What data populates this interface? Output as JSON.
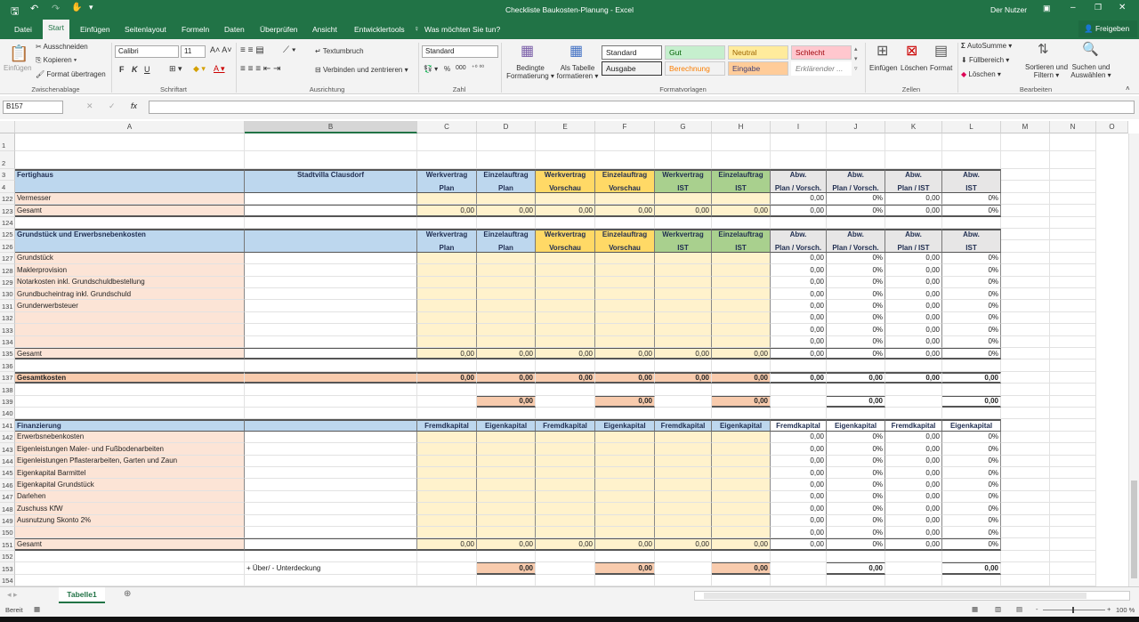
{
  "window": {
    "title": "Checkliste Baukosten-Planung - Excel",
    "user": "Der Nutzer",
    "share": "Freigeben",
    "brand_color": "#217346"
  },
  "qat": {
    "save": "save-icon",
    "undo": "undo-icon",
    "redo": "redo-icon",
    "touch": "touch-mode-icon"
  },
  "tabs": [
    "Datei",
    "Start",
    "Einfügen",
    "Seitenlayout",
    "Formeln",
    "Daten",
    "Überprüfen",
    "Ansicht",
    "Entwicklertools"
  ],
  "tell_me": "Was möchten Sie tun?",
  "ribbon": {
    "clipboard": {
      "paste": "Einfügen",
      "cut": "Ausschneiden",
      "copy": "Kopieren",
      "format_painter": "Format übertragen",
      "group": "Zwischenablage"
    },
    "font": {
      "name": "Calibri",
      "size": "11",
      "bold": "F",
      "italic": "K",
      "underline": "U",
      "group": "Schriftart"
    },
    "alignment": {
      "wrap": "Textumbruch",
      "merge": "Verbinden und zentrieren",
      "group": "Ausrichtung"
    },
    "number": {
      "format": "Standard",
      "percent": "%",
      "thousands": "000",
      "group": "Zahl"
    },
    "styles": {
      "conditional": [
        "Bedingte",
        "Formatierung"
      ],
      "as_table": [
        "Als Tabelle",
        "formatieren"
      ],
      "cells": [
        "Standard",
        "Gut",
        "Neutral",
        "Schlecht",
        "Ausgabe",
        "Berechnung",
        "Eingabe",
        "Erklärender ..."
      ],
      "group": "Formatvorlagen"
    },
    "cells": {
      "insert": "Einfügen",
      "delete": "Löschen",
      "format": "Format",
      "group": "Zellen"
    },
    "editing": {
      "autosum": "AutoSumme",
      "fill": "Füllbereich",
      "clear": "Löschen",
      "sort": [
        "Sortieren und",
        "Filtern"
      ],
      "find": [
        "Suchen und",
        "Auswählen"
      ],
      "group": "Bearbeiten"
    }
  },
  "formula_bar": {
    "name_box": "B157",
    "fx": "fx",
    "value": ""
  },
  "sheet": {
    "columns": [
      "A",
      "B",
      "C",
      "D",
      "E",
      "F",
      "G",
      "H",
      "I",
      "J",
      "K",
      "L",
      "M",
      "N",
      "O"
    ],
    "rows": [
      {
        "num": "1",
        "kind": "blank",
        "cells": []
      },
      {
        "num": "2",
        "kind": "blank",
        "cells": []
      },
      {
        "num": "3",
        "kind": "header-top",
        "cells": [
          "Fertighaus",
          "Stadtvilla Clausdorf",
          "Werkvertrag",
          "Einzelauftrag",
          "Werkvertrag",
          "Einzelauftrag",
          "Werkvertrag",
          "Einzelauftrag",
          "Abw.",
          "Abw.",
          "Abw.",
          "Abw."
        ]
      },
      {
        "num": "4",
        "kind": "header-bottom",
        "cells": [
          "",
          "",
          "Plan",
          "Plan",
          "Vorschau",
          "Vorschau",
          "IST",
          "IST",
          "Plan / Vorsch.",
          "Plan / Vorsch.",
          "Plan / IST",
          "IST"
        ]
      },
      {
        "num": "122",
        "kind": "item",
        "cells": [
          "Vermesser",
          "",
          "",
          "",
          "",
          "",
          "",
          "",
          "0,00",
          "0%",
          "0,00",
          "0%"
        ]
      },
      {
        "num": "123",
        "kind": "total",
        "cells": [
          "Gesamt",
          "",
          "0,00",
          "0,00",
          "0,00",
          "0,00",
          "0,00",
          "0,00",
          "0,00",
          "0%",
          "0,00",
          "0%"
        ]
      },
      {
        "num": "124",
        "kind": "blank",
        "cells": []
      },
      {
        "num": "125",
        "kind": "header-top",
        "cells": [
          "Grundstück und Erwerbsnebenkosten",
          "",
          "Werkvertrag",
          "Einzelauftrag",
          "Werkvertrag",
          "Einzelauftrag",
          "Werkvertrag",
          "Einzelauftrag",
          "Abw.",
          "Abw.",
          "Abw.",
          "Abw."
        ]
      },
      {
        "num": "126",
        "kind": "header-bottom",
        "cells": [
          "",
          "",
          "Plan",
          "Plan",
          "Vorschau",
          "Vorschau",
          "IST",
          "IST",
          "Plan / Vorsch.",
          "Plan / Vorsch.",
          "Plan / IST",
          "IST"
        ]
      },
      {
        "num": "127",
        "kind": "item",
        "cells": [
          "Grundstück",
          "",
          "",
          "",
          "",
          "",
          "",
          "",
          "0,00",
          "0%",
          "0,00",
          "0%"
        ]
      },
      {
        "num": "128",
        "kind": "item",
        "cells": [
          "Maklerprovision",
          "",
          "",
          "",
          "",
          "",
          "",
          "",
          "0,00",
          "0%",
          "0,00",
          "0%"
        ]
      },
      {
        "num": "129",
        "kind": "item",
        "cells": [
          "Notarkosten inkl. Grundschuldbestellung",
          "",
          "",
          "",
          "",
          "",
          "",
          "",
          "0,00",
          "0%",
          "0,00",
          "0%"
        ]
      },
      {
        "num": "130",
        "kind": "item",
        "cells": [
          "Grundbucheintrag inkl. Grundschuld",
          "",
          "",
          "",
          "",
          "",
          "",
          "",
          "0,00",
          "0%",
          "0,00",
          "0%"
        ]
      },
      {
        "num": "131",
        "kind": "item",
        "cells": [
          "Grunderwerbsteuer",
          "",
          "",
          "",
          "",
          "",
          "",
          "",
          "0,00",
          "0%",
          "0,00",
          "0%"
        ]
      },
      {
        "num": "132",
        "kind": "item",
        "cells": [
          "",
          "",
          "",
          "",
          "",
          "",
          "",
          "",
          "0,00",
          "0%",
          "0,00",
          "0%"
        ]
      },
      {
        "num": "133",
        "kind": "item",
        "cells": [
          "",
          "",
          "",
          "",
          "",
          "",
          "",
          "",
          "0,00",
          "0%",
          "0,00",
          "0%"
        ]
      },
      {
        "num": "134",
        "kind": "item",
        "cells": [
          "",
          "",
          "",
          "",
          "",
          "",
          "",
          "",
          "0,00",
          "0%",
          "0,00",
          "0%"
        ]
      },
      {
        "num": "135",
        "kind": "total",
        "cells": [
          "Gesamt",
          "",
          "0,00",
          "0,00",
          "0,00",
          "0,00",
          "0,00",
          "0,00",
          "0,00",
          "0%",
          "0,00",
          "0%"
        ]
      },
      {
        "num": "136",
        "kind": "blank",
        "cells": []
      },
      {
        "num": "137",
        "kind": "grand",
        "cells": [
          "Gesamtkosten",
          "",
          "0,00",
          "0,00",
          "0,00",
          "0,00",
          "0,00",
          "0,00",
          "0,00",
          "0,00",
          "0,00",
          "0,00"
        ]
      },
      {
        "num": "138",
        "kind": "blank",
        "cells": []
      },
      {
        "num": "139",
        "kind": "diff",
        "cells": [
          "",
          "",
          "",
          "0,00",
          "",
          "0,00",
          "",
          "0,00",
          "",
          "0,00",
          "",
          "0,00"
        ]
      },
      {
        "num": "140",
        "kind": "blank",
        "cells": []
      },
      {
        "num": "141",
        "kind": "fin-header",
        "cells": [
          "Finanzierung",
          "",
          "Fremdkapital",
          "Eigenkapital",
          "Fremdkapital",
          "Eigenkapital",
          "Fremdkapital",
          "Eigenkapital",
          "Fremdkapital",
          "Eigenkapital",
          "Fremdkapital",
          "Eigenkapital"
        ]
      },
      {
        "num": "142",
        "kind": "item",
        "cells": [
          "Erwerbsnebenkosten",
          "",
          "",
          "",
          "",
          "",
          "",
          "",
          "0,00",
          "0%",
          "0,00",
          "0%"
        ]
      },
      {
        "num": "143",
        "kind": "item",
        "cells": [
          "Eigenleistungen Maler- und Fußbodenarbeiten",
          "",
          "",
          "",
          "",
          "",
          "",
          "",
          "0,00",
          "0%",
          "0,00",
          "0%"
        ]
      },
      {
        "num": "144",
        "kind": "item",
        "cells": [
          "Eigenleistungen Pflasterarbeiten, Garten und Zaun",
          "",
          "",
          "",
          "",
          "",
          "",
          "",
          "0,00",
          "0%",
          "0,00",
          "0%"
        ]
      },
      {
        "num": "145",
        "kind": "item",
        "cells": [
          "Eigenkapital Barmittel",
          "",
          "",
          "",
          "",
          "",
          "",
          "",
          "0,00",
          "0%",
          "0,00",
          "0%"
        ]
      },
      {
        "num": "146",
        "kind": "item",
        "cells": [
          "Eigenkapital Grundstück",
          "",
          "",
          "",
          "",
          "",
          "",
          "",
          "0,00",
          "0%",
          "0,00",
          "0%"
        ]
      },
      {
        "num": "147",
        "kind": "item",
        "cells": [
          "Darlehen",
          "",
          "",
          "",
          "",
          "",
          "",
          "",
          "0,00",
          "0%",
          "0,00",
          "0%"
        ]
      },
      {
        "num": "148",
        "kind": "item",
        "cells": [
          "Zuschuss KfW",
          "",
          "",
          "",
          "",
          "",
          "",
          "",
          "0,00",
          "0%",
          "0,00",
          "0%"
        ]
      },
      {
        "num": "149",
        "kind": "item",
        "cells": [
          "Ausnutzung Skonto 2%",
          "",
          "",
          "",
          "",
          "",
          "",
          "",
          "0,00",
          "0%",
          "0,00",
          "0%"
        ]
      },
      {
        "num": "150",
        "kind": "item",
        "cells": [
          "",
          "",
          "",
          "",
          "",
          "",
          "",
          "",
          "0,00",
          "0%",
          "0,00",
          "0%"
        ]
      },
      {
        "num": "151",
        "kind": "total",
        "cells": [
          "Gesamt",
          "",
          "0,00",
          "0,00",
          "0,00",
          "0,00",
          "0,00",
          "0,00",
          "0,00",
          "0%",
          "0,00",
          "0%"
        ]
      },
      {
        "num": "152",
        "kind": "blank",
        "cells": []
      },
      {
        "num": "153",
        "kind": "diff",
        "cells": [
          "",
          "+ Über/ - Unterdeckung",
          "",
          "0,00",
          "",
          "0,00",
          "",
          "0,00",
          "",
          "0,00",
          "",
          "0,00"
        ]
      },
      {
        "num": "154",
        "kind": "blank",
        "cells": []
      }
    ]
  },
  "sheet_tabs": [
    "Tabelle1"
  ],
  "status": {
    "ready": "Bereit",
    "zoom": "100 %"
  },
  "colors": {
    "header_blue": "#bdd7ee",
    "header_yellow": "#ffd966",
    "header_green": "#a9d08e",
    "header_grey": "#e7e6e6",
    "item_peach": "#fce4d6",
    "input_yellow": "#fff2cc",
    "total_orange": "#f8cbad"
  }
}
